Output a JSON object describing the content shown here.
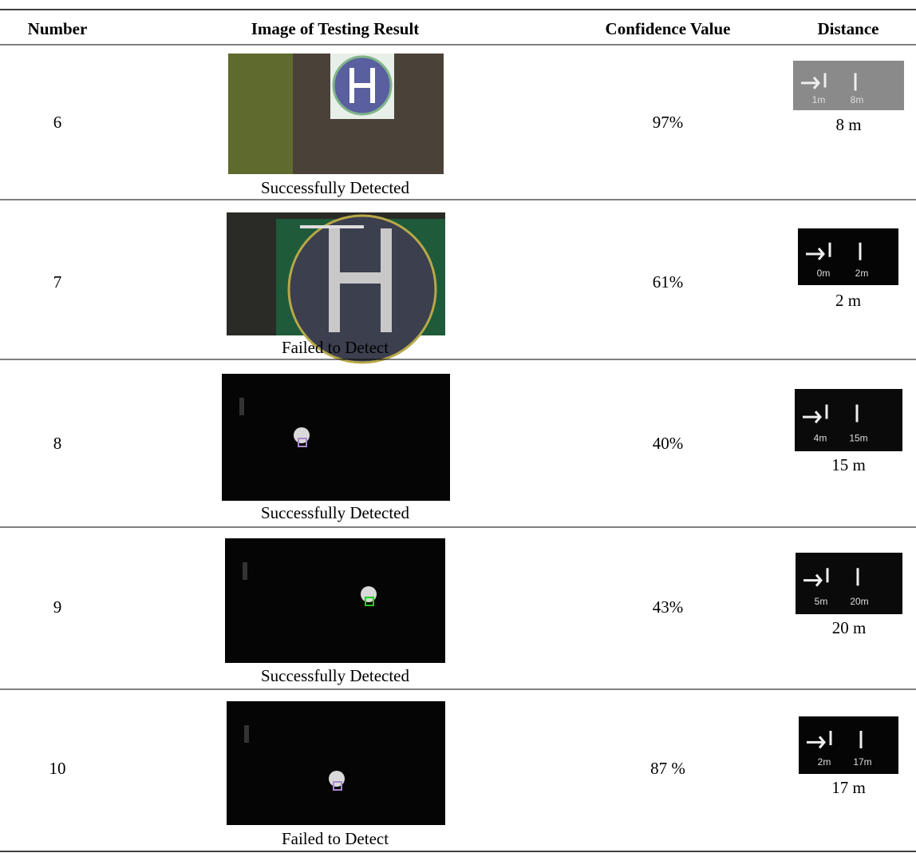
{
  "table": {
    "headers": [
      "Number",
      "Image of Testing Result",
      "Confidence Value",
      "Distance"
    ],
    "rows": [
      {
        "number": "6",
        "result": "Successfully Detected",
        "confidence": "97%",
        "distance": "8 m",
        "osd": [
          "1m",
          "8m"
        ]
      },
      {
        "number": "7",
        "result": "Failed to Detect",
        "confidence": "61%",
        "distance": "2 m",
        "osd": [
          "0m",
          "2m"
        ]
      },
      {
        "number": "8",
        "result": "Successfully Detected",
        "confidence": "40%",
        "distance": "15 m",
        "osd": [
          "4m",
          "15m"
        ]
      },
      {
        "number": "9",
        "result": "Successfully Detected",
        "confidence": "43%",
        "distance": "20 m",
        "osd": [
          "5m",
          "20m"
        ]
      },
      {
        "number": "10",
        "result": "Failed to Detect",
        "confidence": "87 %",
        "distance": "17 m",
        "osd": [
          "2m",
          "17m"
        ]
      }
    ]
  }
}
